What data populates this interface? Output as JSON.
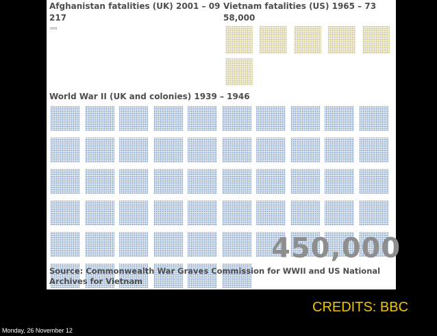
{
  "chart_data": {
    "type": "other",
    "description": "Icon-array comparison of war fatalities; each block of dots represents a group of deaths",
    "series": [
      {
        "name": "Afghanistan fatalities (UK) 2001 – 09",
        "value": 217,
        "value_label": "217",
        "color": "#6b7d8c"
      },
      {
        "name": "Vietnam fatalities (US) 1965 – 73",
        "value": 58000,
        "value_label": "58,000",
        "color": "#c8bd7f"
      },
      {
        "name": "World War II (UK and colonies) 1939 – 1946",
        "value": 450000,
        "value_label": "450,000",
        "color": "#7b9cc8"
      }
    ]
  },
  "labels": {
    "afghanistan_title": "Afghanistan fatalities (UK) 2001 – 09",
    "afghanistan_count": "217",
    "vietnam_title": "Vietnam fatalities (US) 1965 – 73",
    "vietnam_count": "58,000",
    "ww2_title": "World War II (UK and colonies) 1939 – 1946",
    "ww2_big_number": "450,000",
    "source_line_1": "Source: Commonwealth War Graves Commission for WWII and US National",
    "source_line_2": "Archives for Vietnam"
  },
  "slide": {
    "credits": "CREDITS: BBC",
    "date": "Monday, 26 November 12"
  }
}
